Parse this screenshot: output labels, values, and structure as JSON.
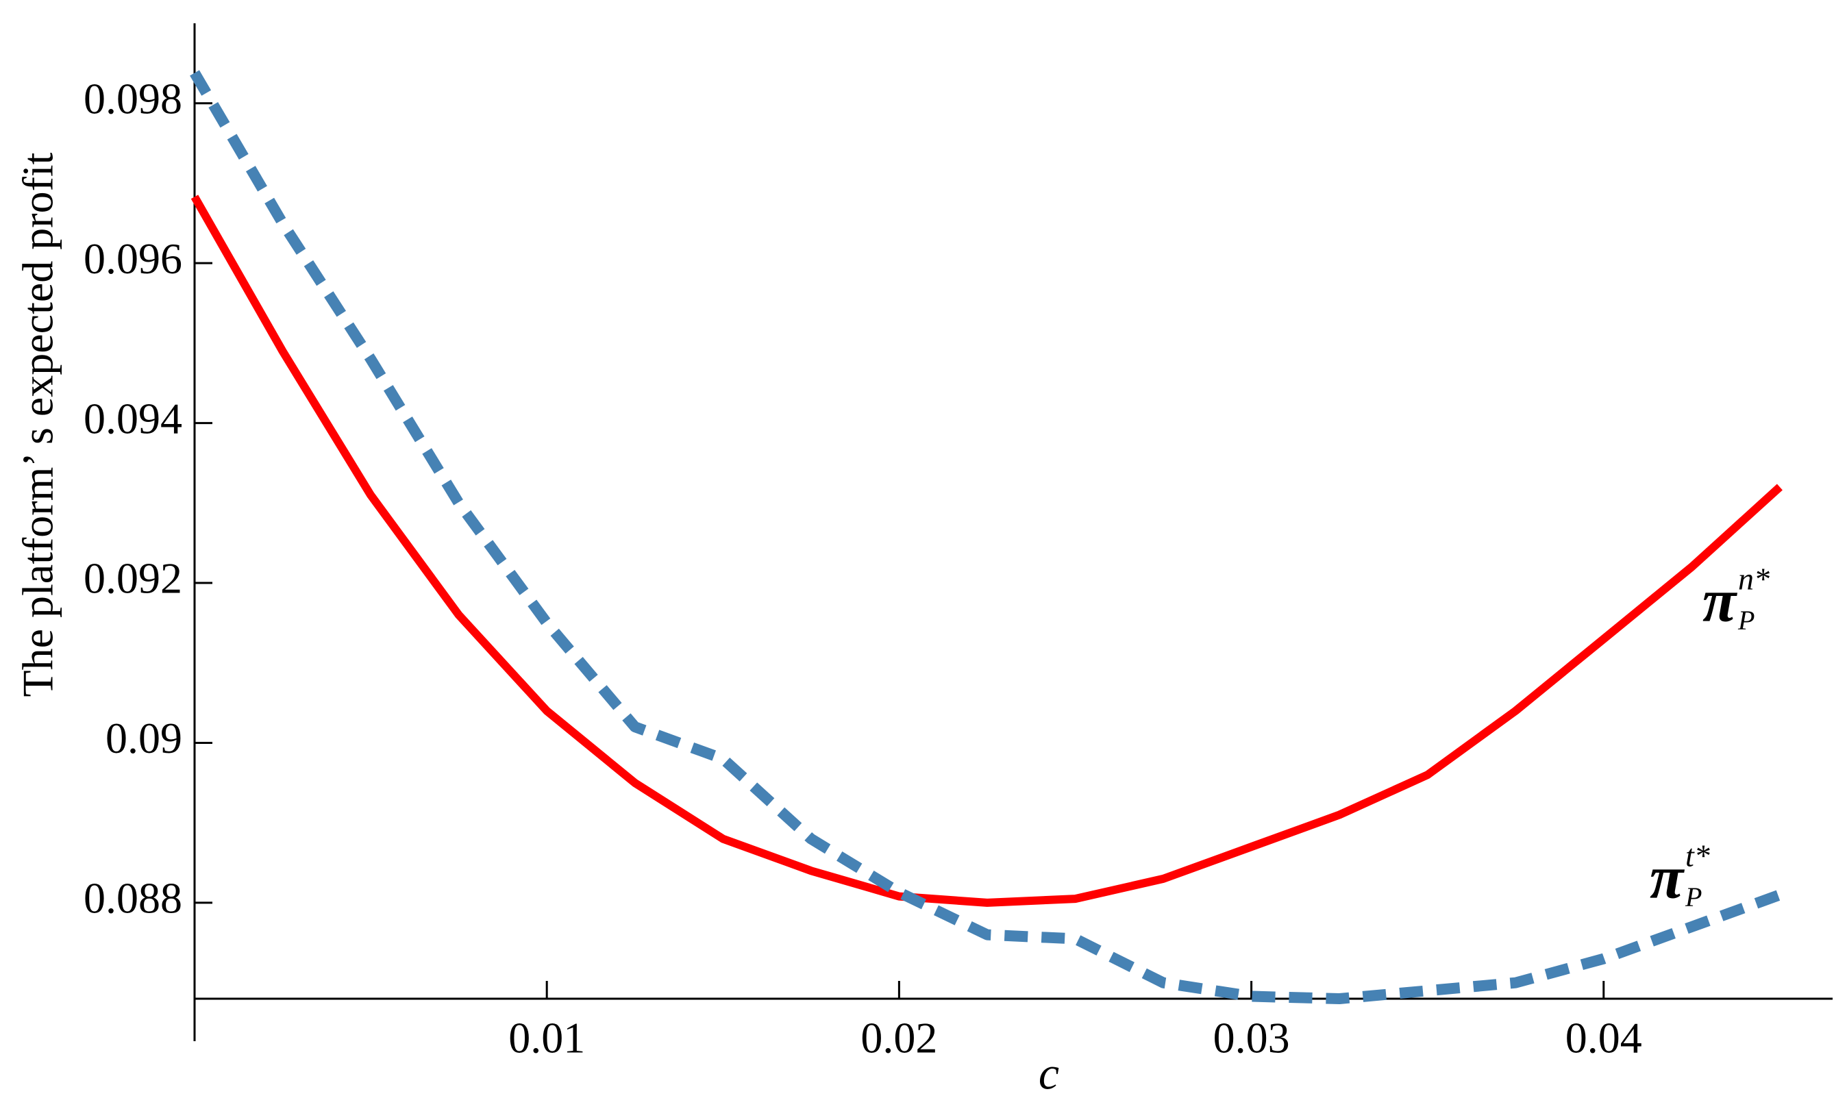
{
  "chart_data": {
    "type": "line",
    "x_label": "c",
    "y_label": "The platform’ s expected profit",
    "x": [
      0,
      0.0025,
      0.005,
      0.0075,
      0.01,
      0.0125,
      0.015,
      0.0175,
      0.02,
      0.0225,
      0.025,
      0.0275,
      0.03,
      0.0325,
      0.035,
      0.0375,
      0.04,
      0.0425,
      0.045
    ],
    "series": [
      {
        "name": "n",
        "color": "#ff0000",
        "dashed": false,
        "values": [
          0.09683,
          0.0949,
          0.0931,
          0.0916,
          0.0904,
          0.0895,
          0.0888,
          0.0884,
          0.08808,
          0.088,
          0.08805,
          0.0883,
          0.0887,
          0.0891,
          0.0896,
          0.0904,
          0.0913,
          0.0922,
          0.0932
        ]
      },
      {
        "name": "t",
        "color": "#4682b4",
        "dashed": true,
        "values": [
          0.09838,
          0.0965,
          0.0948,
          0.093,
          0.0915,
          0.0902,
          0.0898,
          0.0888,
          0.08813,
          0.0876,
          0.08755,
          0.087,
          0.08683,
          0.0868,
          0.0869,
          0.087,
          0.0873,
          0.0877,
          0.0881
        ]
      }
    ],
    "annotations": [
      {
        "text": "π",
        "sub": "P",
        "sup": "n*"
      },
      {
        "text": "π",
        "sub": "P",
        "sup": "t*"
      }
    ],
    "xlim": [
      0,
      0.0465
    ],
    "ylim": [
      0.0868,
      0.099
    ],
    "xticks": [
      0.01,
      0.02,
      0.03,
      0.04
    ],
    "yticks": [
      0.088,
      0.09,
      0.092,
      0.094,
      0.096,
      0.098
    ]
  }
}
